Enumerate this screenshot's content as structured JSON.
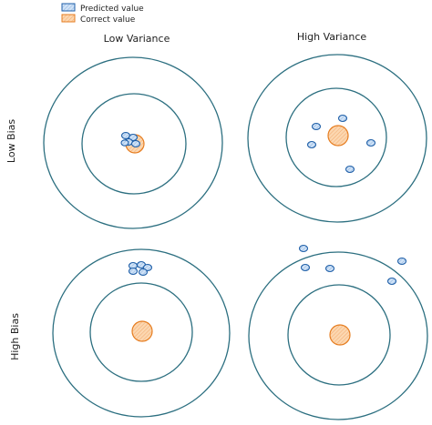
{
  "legend": {
    "predicted_label": "Predicted value",
    "correct_label": "Correct value"
  },
  "columns": [
    "Low Variance",
    "High Variance"
  ],
  "rows": [
    "Low Bias",
    "High Bias"
  ],
  "colors": {
    "ring": "#2c6f80",
    "correct_fill": "#fcd7b0",
    "correct_stroke": "#e67e22",
    "predicted_fill": "#b7d3f2",
    "predicted_stroke": "#1f5fa8"
  },
  "icons": {
    "predicted": "predicted-swatch-icon",
    "correct": "correct-swatch-icon"
  }
}
